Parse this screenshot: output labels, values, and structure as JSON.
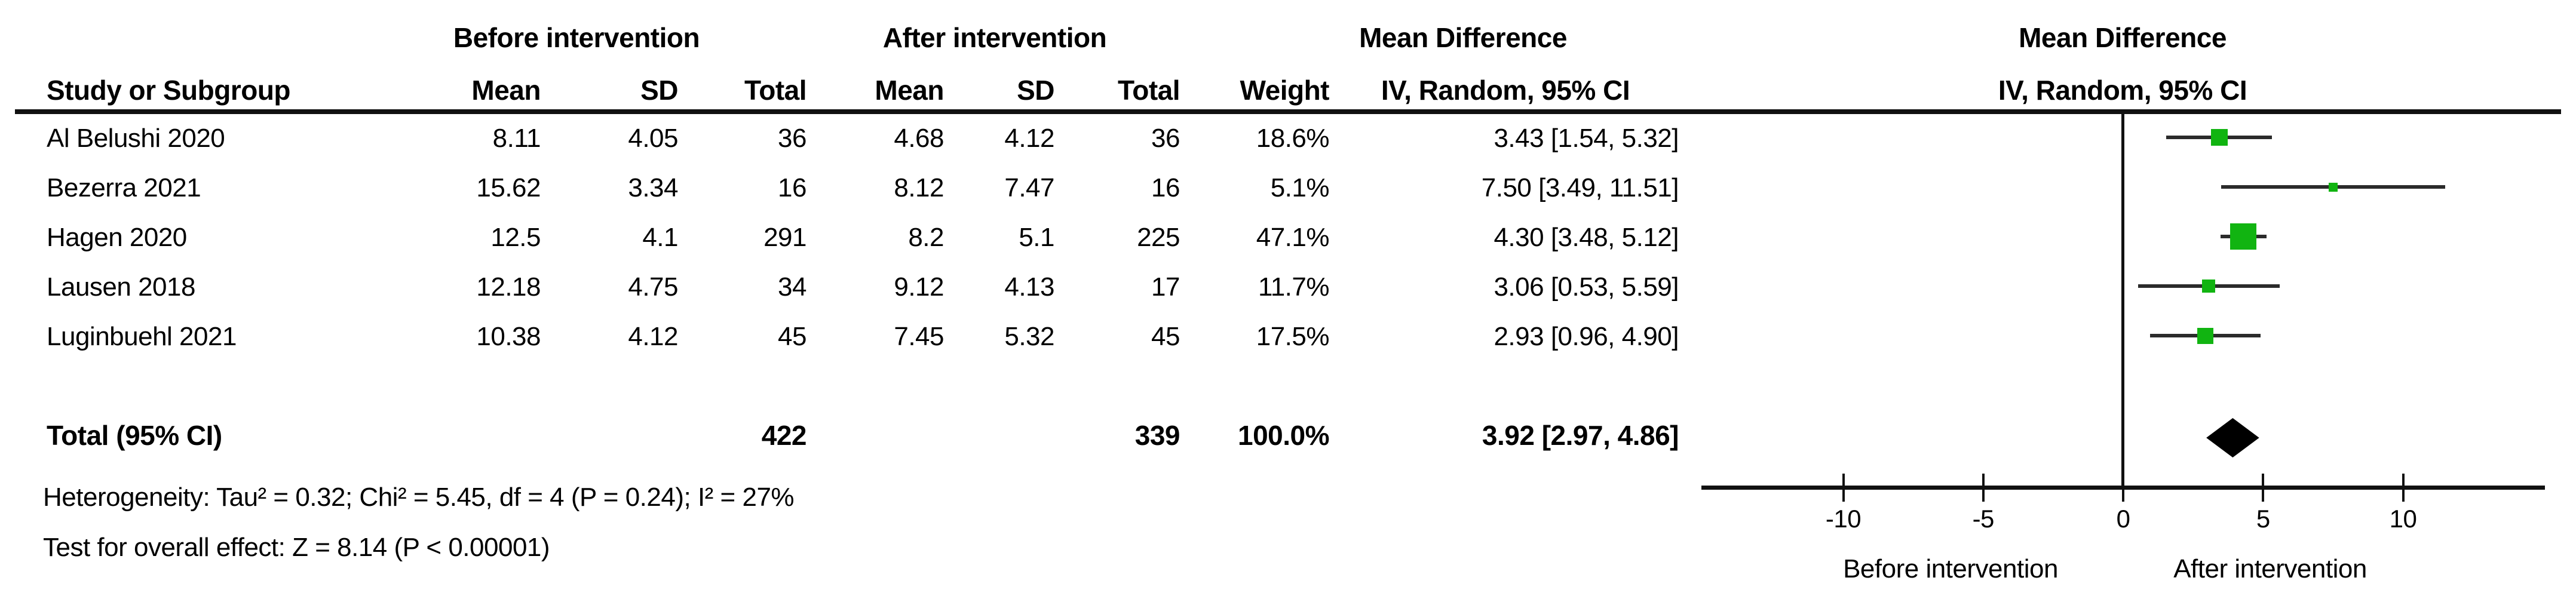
{
  "table": {
    "group_headers": {
      "before": "Before intervention",
      "after": "After intervention",
      "md_left": "Mean Difference",
      "md_right": "Mean Difference"
    },
    "col_headers": {
      "study": "Study or Subgroup",
      "mean_before": "Mean",
      "sd_before": "SD",
      "total_before": "Total",
      "mean_after": "Mean",
      "sd_after": "SD",
      "total_after": "Total",
      "weight": "Weight",
      "ci_left": "IV, Random, 95% CI",
      "ci_right": "IV, Random, 95% CI"
    },
    "rows": [
      {
        "study": "Al Belushi 2020",
        "mean1": "8.11",
        "sd1": "4.05",
        "total1": "36",
        "mean2": "4.68",
        "sd2": "4.12",
        "total2": "36",
        "weight": "18.6%",
        "ci": "3.43 [1.54, 5.32]"
      },
      {
        "study": "Bezerra 2021",
        "mean1": "15.62",
        "sd1": "3.34",
        "total1": "16",
        "mean2": "8.12",
        "sd2": "7.47",
        "total2": "16",
        "weight": "5.1%",
        "ci": "7.50 [3.49, 11.51]"
      },
      {
        "study": "Hagen 2020",
        "mean1": "12.5",
        "sd1": "4.1",
        "total1": "291",
        "mean2": "8.2",
        "sd2": "5.1",
        "total2": "225",
        "weight": "47.1%",
        "ci": "4.30 [3.48, 5.12]"
      },
      {
        "study": "Lausen 2018",
        "mean1": "12.18",
        "sd1": "4.75",
        "total1": "34",
        "mean2": "9.12",
        "sd2": "4.13",
        "total2": "17",
        "weight": "11.7%",
        "ci": "3.06 [0.53, 5.59]"
      },
      {
        "study": "Luginbuehl 2021",
        "mean1": "10.38",
        "sd1": "4.12",
        "total1": "45",
        "mean2": "7.45",
        "sd2": "5.32",
        "total2": "45",
        "weight": "17.5%",
        "ci": "2.93 [0.96, 4.90]"
      }
    ],
    "total_row": {
      "label": "Total (95% CI)",
      "total1": "422",
      "total2": "339",
      "weight": "100.0%",
      "ci": "3.92 [2.97, 4.86]"
    },
    "footnotes": {
      "heterogeneity": "Heterogeneity: Tau² = 0.32; Chi² = 5.45, df = 4 (P = 0.24); I² = 27%",
      "overall_effect": "Test for overall effect: Z = 8.14 (P < 0.00001)"
    }
  },
  "chart_data": {
    "type": "forest",
    "title": "Mean Difference, IV, Random, 95% CI",
    "x_ticks": [
      -10,
      -5,
      0,
      5,
      10
    ],
    "xlim": [
      -15.1,
      15.1
    ],
    "studies": [
      {
        "name": "Al Belushi 2020",
        "md": 3.43,
        "low": 1.54,
        "high": 5.32,
        "weight_pct": 18.6
      },
      {
        "name": "Bezerra 2021",
        "md": 7.5,
        "low": 3.49,
        "high": 11.51,
        "weight_pct": 5.1
      },
      {
        "name": "Hagen 2020",
        "md": 4.3,
        "low": 3.48,
        "high": 5.12,
        "weight_pct": 47.1
      },
      {
        "name": "Lausen 2018",
        "md": 3.06,
        "low": 0.53,
        "high": 5.59,
        "weight_pct": 11.7
      },
      {
        "name": "Luginbuehl 2021",
        "md": 2.93,
        "low": 0.96,
        "high": 4.9,
        "weight_pct": 17.5
      }
    ],
    "total": {
      "md": 3.92,
      "low": 2.97,
      "high": 4.86,
      "weight_pct": 100.0
    },
    "axis_labels": {
      "left": "Before intervention",
      "right": "After intervention"
    },
    "colors": {
      "marker_green": "#11b411",
      "line_black": "#2b2b2b",
      "diamond_black": "#000000"
    }
  }
}
